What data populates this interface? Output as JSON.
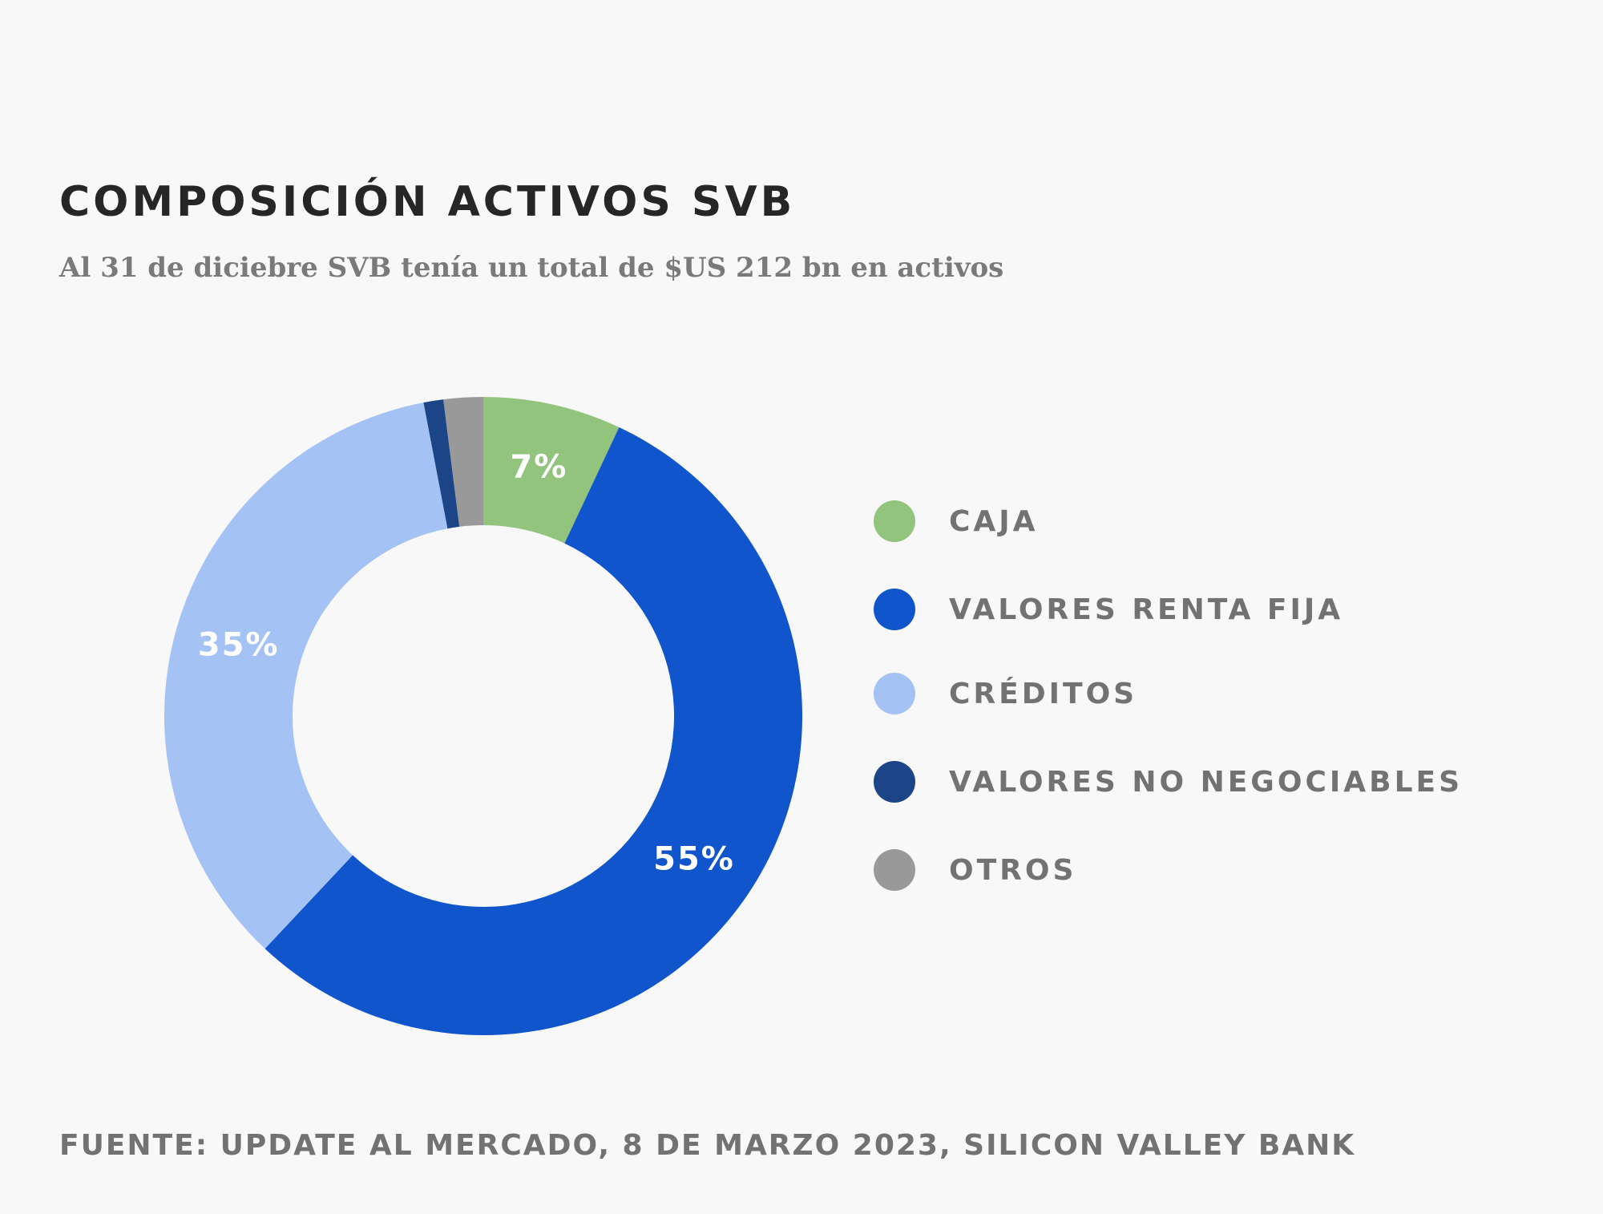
{
  "header": {
    "title": "COMPOSICIÓN ACTIVOS SVB",
    "subtitle": "Al 31 de diciebre SVB tenía un total de $US 212 bn en activos"
  },
  "footer": {
    "source": "FUENTE: UPDATE AL MERCADO, 8 DE MARZO 2023, SILICON VALLEY BANK"
  },
  "chart_data": {
    "type": "pie",
    "variant": "donut",
    "title": "COMPOSICIÓN ACTIVOS SVB",
    "subtitle": "Al 31 de diciebre SVB tenía un total de $US 212 bn en activos",
    "unit": "%",
    "legend_position": "right",
    "categories": [
      "CAJA",
      "VALORES RENTA FIJA",
      "CRÉDITOS",
      "VALORES NO NEGOCIABLES",
      "OTROS"
    ],
    "values": [
      7,
      55,
      35,
      1,
      2
    ],
    "data_labels": [
      "7%",
      "55%",
      "35%",
      "",
      ""
    ],
    "colors": [
      "#93c47d",
      "#1155cc",
      "#a4c2f4",
      "#1c4587",
      "#999999"
    ]
  }
}
